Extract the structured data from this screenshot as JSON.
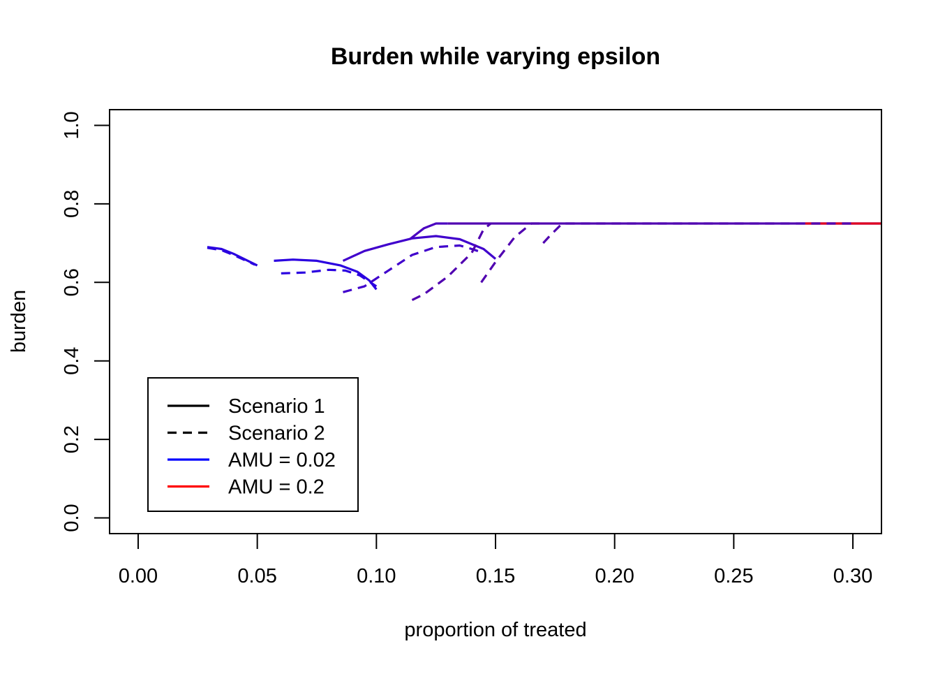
{
  "chart_data": {
    "type": "line",
    "title": "Burden while varying epsilon",
    "xlabel": "proportion of treated",
    "ylabel": "burden",
    "xlim": [
      -0.012,
      0.312
    ],
    "ylim": [
      -0.04,
      1.04
    ],
    "x_ticks": [
      0.0,
      0.05,
      0.1,
      0.15,
      0.2,
      0.25,
      0.3
    ],
    "x_tick_labels": [
      "0.00",
      "0.05",
      "0.10",
      "0.15",
      "0.20",
      "0.25",
      "0.30"
    ],
    "y_ticks": [
      0.0,
      0.2,
      0.4,
      0.6,
      0.8,
      1.0
    ],
    "y_tick_labels": [
      "0.0",
      "0.2",
      "0.4",
      "0.6",
      "0.8",
      "1.0"
    ],
    "grid": false,
    "legend_position": "bottom-left",
    "legend": [
      {
        "label": "Scenario 1",
        "color": "#000000",
        "dash": "solid"
      },
      {
        "label": "Scenario 2",
        "color": "#000000",
        "dash": "dashed"
      },
      {
        "label": "AMU = 0.02",
        "color": "#0000FF",
        "dash": "solid"
      },
      {
        "label": "AMU = 0.2",
        "color": "#FF0000",
        "dash": "solid"
      }
    ],
    "series": [
      {
        "color": "#2A00E0",
        "dash": "solid",
        "points": [
          [
            0.029,
            0.69
          ],
          [
            0.035,
            0.685
          ],
          [
            0.04,
            0.673
          ],
          [
            0.045,
            0.658
          ],
          [
            0.05,
            0.643
          ]
        ]
      },
      {
        "color": "#2A00E0",
        "dash": "dashed",
        "points": [
          [
            0.029,
            0.688
          ],
          [
            0.035,
            0.682
          ],
          [
            0.04,
            0.67
          ],
          [
            0.045,
            0.656
          ],
          [
            0.049,
            0.645
          ]
        ]
      },
      {
        "color": "#2A00E0",
        "dash": "solid",
        "points": [
          [
            0.057,
            0.655
          ],
          [
            0.065,
            0.658
          ],
          [
            0.075,
            0.655
          ],
          [
            0.085,
            0.643
          ],
          [
            0.092,
            0.627
          ],
          [
            0.097,
            0.605
          ],
          [
            0.1,
            0.582
          ]
        ]
      },
      {
        "color": "#2A00E0",
        "dash": "dashed",
        "points": [
          [
            0.06,
            0.623
          ],
          [
            0.07,
            0.625
          ],
          [
            0.08,
            0.632
          ],
          [
            0.087,
            0.63
          ],
          [
            0.093,
            0.618
          ],
          [
            0.1,
            0.59
          ]
        ]
      },
      {
        "color": "#4000CC",
        "dash": "solid",
        "points": [
          [
            0.086,
            0.655
          ],
          [
            0.095,
            0.68
          ],
          [
            0.105,
            0.697
          ],
          [
            0.115,
            0.712
          ],
          [
            0.125,
            0.718
          ],
          [
            0.135,
            0.71
          ],
          [
            0.145,
            0.685
          ],
          [
            0.15,
            0.66
          ]
        ]
      },
      {
        "color": "#4000CC",
        "dash": "dashed",
        "points": [
          [
            0.086,
            0.575
          ],
          [
            0.095,
            0.59
          ],
          [
            0.105,
            0.63
          ],
          [
            0.115,
            0.67
          ],
          [
            0.125,
            0.69
          ],
          [
            0.135,
            0.694
          ],
          [
            0.14,
            0.685
          ],
          [
            0.145,
            0.675
          ]
        ]
      },
      {
        "color": "#4A00C0",
        "dash": "solid",
        "points": [
          [
            0.114,
            0.71
          ],
          [
            0.12,
            0.738
          ],
          [
            0.125,
            0.75
          ],
          [
            0.13,
            0.75
          ]
        ]
      },
      {
        "color": "#5000B0",
        "dash": "solid",
        "points": [
          [
            0.13,
            0.75
          ],
          [
            0.2,
            0.75
          ],
          [
            0.28,
            0.75
          ],
          [
            0.312,
            0.75
          ]
        ]
      },
      {
        "color": "#E00020",
        "dash": "solid",
        "points": [
          [
            0.28,
            0.75
          ],
          [
            0.312,
            0.75
          ]
        ]
      },
      {
        "color": "#5000B0",
        "dash": "dashed",
        "points": [
          [
            0.115,
            0.555
          ],
          [
            0.12,
            0.57
          ],
          [
            0.13,
            0.615
          ],
          [
            0.14,
            0.675
          ],
          [
            0.145,
            0.735
          ],
          [
            0.148,
            0.75
          ]
        ]
      },
      {
        "color": "#5000B0",
        "dash": "dashed",
        "points": [
          [
            0.144,
            0.6
          ],
          [
            0.15,
            0.652
          ],
          [
            0.158,
            0.715
          ],
          [
            0.165,
            0.75
          ],
          [
            0.17,
            0.75
          ]
        ]
      },
      {
        "color": "#5000B0",
        "dash": "dashed",
        "points": [
          [
            0.17,
            0.7
          ],
          [
            0.173,
            0.72
          ],
          [
            0.178,
            0.75
          ],
          [
            0.2,
            0.75
          ],
          [
            0.3,
            0.75
          ]
        ]
      }
    ]
  }
}
